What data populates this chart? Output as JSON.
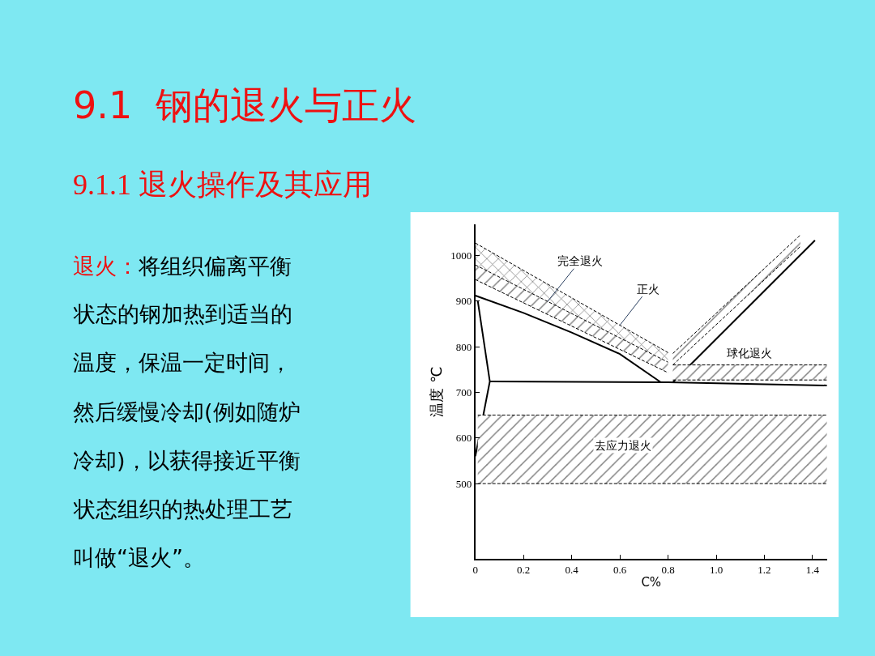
{
  "chart_data": {
    "type": "line",
    "title": "9.1  钢的退火与正火",
    "subtitle": "9.1.1 退火操作及其应用",
    "xlabel": "C%",
    "ylabel": "温度 ℃",
    "xlim": [
      0,
      1.46
    ],
    "ylim": [
      335,
      1068
    ],
    "xticks": [
      0,
      0.2,
      0.4,
      0.6,
      0.8,
      {
        "value": 1,
        "label": "1.0"
      },
      1.2,
      1.4
    ],
    "yticks": [
      500,
      600,
      700,
      800,
      900,
      1000
    ],
    "marker": "none",
    "line_style": "solid",
    "series": [
      {
        "color": "#000000",
        "x": [
          0,
          0.2,
          0.4,
          0.6,
          0.77
        ],
        "values": [
          912,
          874,
          831,
          784,
          722
        ]
      },
      {
        "color": "#000000",
        "x": [
          0.82,
          1.41
        ],
        "values": [
          722,
          1033
        ]
      },
      {
        "color": "#000000",
        "x": [
          0.06,
          0.8,
          1.46
        ],
        "values": [
          724,
          722,
          715
        ]
      },
      {
        "color": "#000000",
        "x": [
          0.01,
          0.06,
          0.0
        ],
        "values": [
          900,
          724,
          560
        ]
      },
      {
        "color": "#000000",
        "line_style": "dashed",
        "x": [
          0,
          0.8
        ],
        "values": [
          947,
          743
        ]
      },
      {
        "type": "area",
        "color": "#000000",
        "line_style": "dashed",
        "x": [
          0,
          0.8
        ],
        "values": [
          979,
          766
        ]
      },
      {
        "type": "area",
        "color": "#000000",
        "line_style": "dashed",
        "x": [
          0,
          0.8
        ],
        "values": [
          1027,
          787
        ]
      },
      {
        "color": "#000000",
        "line_style": "dashed",
        "x": [
          0.82,
          1.35
        ],
        "values": [
          760,
          1020
        ]
      },
      {
        "type": "area",
        "color": "#000000",
        "line_style": "dashed",
        "x": [
          0.82,
          1.35
        ],
        "values": [
          785,
          1045
        ]
      },
      {
        "color": "#000000",
        "line_style": "dashed",
        "x": [
          0.82,
          1.46
        ],
        "values": [
          727,
          727
        ]
      },
      {
        "type": "area",
        "color": "#000000",
        "line_style": "dashed",
        "x": [
          0.82,
          1.46
        ],
        "values": [
          760,
          760
        ]
      },
      {
        "color": "#000000",
        "line_style": "dashed",
        "x": [
          0.01,
          1.46
        ],
        "values": [
          500,
          500
        ]
      },
      {
        "type": "area",
        "color": "#000000",
        "line_style": "dashed",
        "x": [
          0.01,
          1.46
        ],
        "values": [
          650,
          650
        ]
      }
    ],
    "annotations": [
      {
        "text": "完全退火",
        "x": 0.3,
        "y": 899
      },
      {
        "text": "正火",
        "x": 0.6,
        "y": 847
      },
      "球化退火",
      "去应力退火",
      "退火：将组织偏离平衡状态的钢加热到适当的温度，保温一定时间，然后缓慢冷却(例如随炉冷却)，以获得接近平衡状态组织的热处理工艺叫做“退火”。"
    ]
  }
}
